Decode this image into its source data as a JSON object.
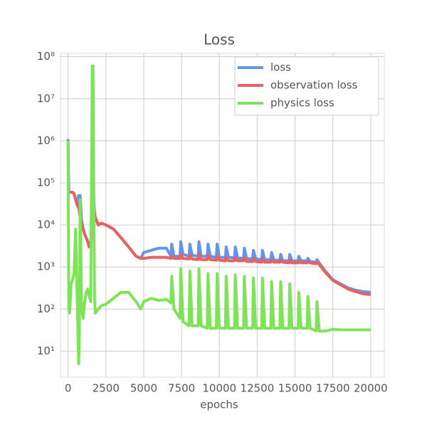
{
  "chart_data": {
    "type": "line",
    "title": "Loss",
    "x_label": "epochs",
    "log_y": true,
    "grid": true,
    "legend": "upper right",
    "xlim": [
      -500,
      20900
    ],
    "ylim": [
      2.4,
      120000000
    ],
    "xticks": [
      0,
      2500,
      5000,
      7500,
      10000,
      12500,
      15000,
      17500,
      20000
    ],
    "yticks": [
      {
        "value": 10,
        "label": "10¹"
      },
      {
        "value": 100,
        "label": "10²"
      },
      {
        "value": 1000,
        "label": "10³"
      },
      {
        "value": 10000,
        "label": "10⁴"
      },
      {
        "value": 100000,
        "label": "10⁵"
      },
      {
        "value": 1000000,
        "label": "10⁶"
      },
      {
        "value": 10000000,
        "label": "10⁷"
      },
      {
        "value": 100000000,
        "label": "10⁸"
      }
    ],
    "x": [
      0,
      50,
      100,
      200,
      300,
      400,
      500,
      600,
      700,
      750,
      800,
      900,
      1000,
      1100,
      1200,
      1300,
      1400,
      1500,
      1600,
      1650,
      1700,
      1750,
      1800,
      2000,
      2200,
      2500,
      3000,
      3500,
      4000,
      4500,
      4800,
      5000,
      5500,
      6000,
      6500,
      6800,
      6850,
      7000,
      7400,
      7450,
      7600,
      8000,
      8050,
      8200,
      8600,
      8650,
      8800,
      9200,
      9250,
      9400,
      9800,
      9850,
      10000,
      10400,
      10450,
      10600,
      11000,
      11050,
      11200,
      11600,
      11650,
      11800,
      12200,
      12250,
      12400,
      12800,
      12850,
      13000,
      13400,
      13450,
      13600,
      14000,
      14050,
      14200,
      14600,
      14650,
      14800,
      15200,
      15250,
      15400,
      15800,
      15850,
      16000,
      16400,
      16450,
      16600,
      17000,
      17500,
      18000,
      18500,
      19000,
      19500,
      20000
    ],
    "series": [
      {
        "name": "loss",
        "color": "#6495ed",
        "values": [
          1100000,
          60000,
          60000,
          60000,
          60000,
          55000,
          40000,
          30000,
          50000,
          20000,
          50000,
          12000,
          8000,
          6000,
          5000,
          4000,
          3000,
          3500,
          100000,
          20000,
          50000,
          20000,
          15000,
          10000,
          11000,
          10000,
          8000,
          5000,
          3000,
          1800,
          1600,
          2200,
          2500,
          2800,
          2800,
          1800,
          3500,
          1800,
          1800,
          4000,
          2000,
          1800,
          3500,
          1900,
          1800,
          4000,
          1800,
          1800,
          3500,
          1800,
          1700,
          3500,
          1700,
          1700,
          3000,
          1700,
          1650,
          3000,
          1650,
          1600,
          2800,
          1600,
          1550,
          2500,
          1550,
          1500,
          2500,
          1500,
          1500,
          2200,
          1450,
          1450,
          2000,
          1400,
          1400,
          2000,
          1400,
          1400,
          1800,
          1400,
          1400,
          1600,
          1350,
          1300,
          1500,
          1250,
          800,
          500,
          400,
          320,
          280,
          260,
          250
        ]
      },
      {
        "name": "observation loss",
        "color": "#e8605f",
        "values": [
          60000,
          60000,
          60000,
          60000,
          60000,
          55000,
          40000,
          30000,
          25000,
          20000,
          15000,
          12000,
          8000,
          6000,
          5000,
          4000,
          3000,
          3500,
          8000,
          20000,
          30000,
          20000,
          15000,
          10000,
          11000,
          10000,
          8000,
          5000,
          3000,
          1800,
          1600,
          1600,
          1700,
          1700,
          1700,
          1600,
          1800,
          1600,
          1600,
          2000,
          1600,
          1550,
          1900,
          1550,
          1500,
          2000,
          1500,
          1500,
          1900,
          1500,
          1450,
          1800,
          1450,
          1400,
          1700,
          1400,
          1400,
          1700,
          1400,
          1400,
          1700,
          1350,
          1350,
          1600,
          1350,
          1300,
          1600,
          1300,
          1300,
          1500,
          1300,
          1300,
          1500,
          1300,
          1250,
          1500,
          1250,
          1250,
          1400,
          1250,
          1250,
          1350,
          1250,
          1200,
          1300,
          1150,
          750,
          480,
          380,
          300,
          260,
          230,
          220
        ]
      },
      {
        "name": "physics loss",
        "color": "#7fe35a",
        "values": [
          1000000,
          100,
          80,
          400,
          500,
          700,
          8000,
          200,
          5,
          30,
          40000,
          100,
          60,
          150,
          250,
          300,
          200,
          150,
          60000000,
          60000000,
          100000,
          200,
          80,
          100,
          120,
          130,
          180,
          250,
          250,
          150,
          100,
          150,
          180,
          160,
          170,
          140,
          600,
          100,
          60,
          900,
          50,
          40,
          800,
          40,
          40,
          900,
          40,
          35,
          700,
          35,
          35,
          700,
          35,
          35,
          600,
          35,
          35,
          650,
          35,
          35,
          600,
          35,
          35,
          550,
          35,
          35,
          550,
          35,
          35,
          450,
          35,
          35,
          450,
          35,
          35,
          400,
          35,
          35,
          250,
          35,
          35,
          200,
          35,
          30,
          150,
          30,
          30,
          33,
          32,
          32,
          32,
          32,
          32
        ]
      }
    ]
  }
}
